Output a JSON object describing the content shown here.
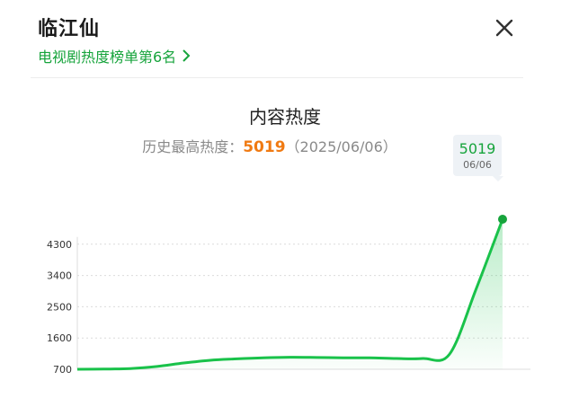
{
  "header": {
    "title": "临江仙",
    "ranking_link": "电视剧热度榜单第6名"
  },
  "chart_section": {
    "title": "内容热度",
    "history_label": "历史最高热度：",
    "history_peak": "5019",
    "history_date": "（2025/06/06）"
  },
  "tooltip": {
    "value": "5019",
    "date": "06/06"
  },
  "colors": {
    "accent_green": "#17a43c",
    "peak_orange": "#f07a12"
  },
  "chart_data": {
    "type": "area",
    "title": "内容热度",
    "yticks": [
      700,
      1600,
      2500,
      3400,
      4300
    ],
    "ylim": [
      700,
      5019
    ],
    "values": [
      700,
      705,
      720,
      780,
      880,
      960,
      1000,
      1030,
      1045,
      1040,
      1030,
      1030,
      1010,
      1010,
      1130,
      3000,
      5019
    ],
    "grid": true
  }
}
